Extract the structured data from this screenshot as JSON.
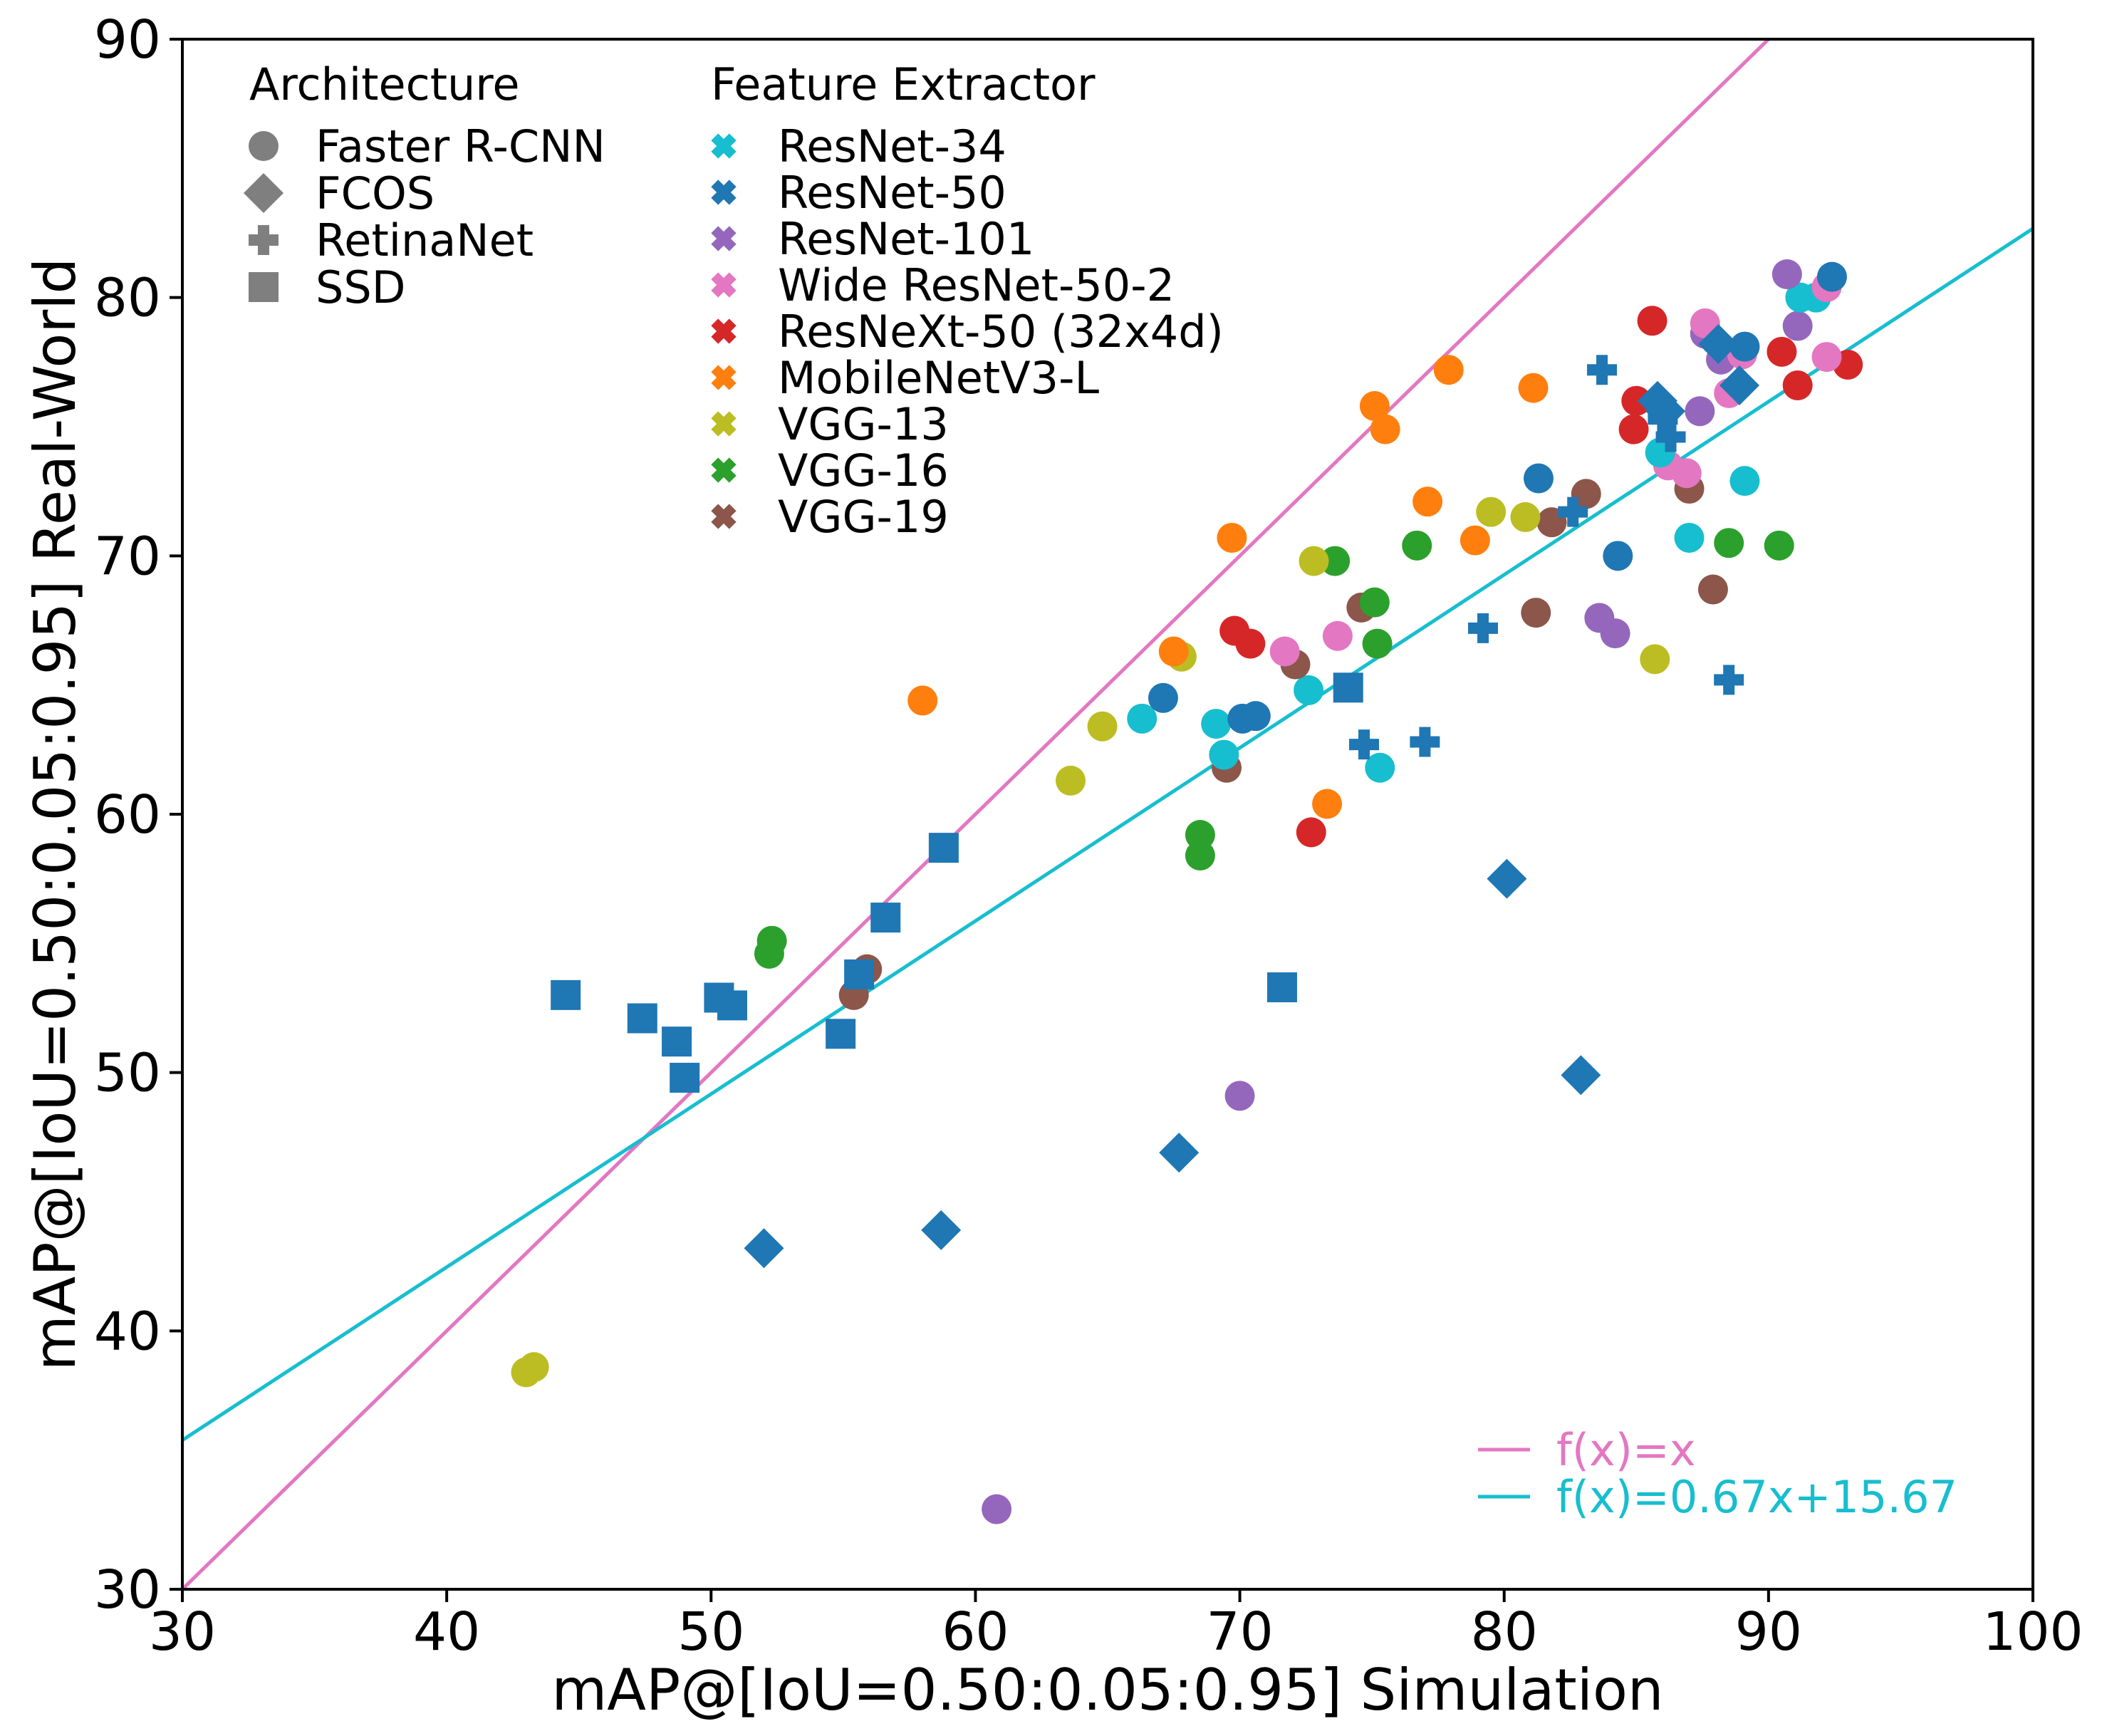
{
  "chart_data": {
    "type": "scatter",
    "title": "",
    "xlabel": "mAP@[IoU=0.50:0.05:0.95] Simulation",
    "ylabel": "mAP@[IoU=0.50:0.05:0.95] Real-World",
    "xlim": [
      30,
      100
    ],
    "ylim": [
      30,
      90
    ],
    "xticks": [
      "30",
      "40",
      "50",
      "60",
      "70",
      "80",
      "90",
      "100"
    ],
    "yticks": [
      "30",
      "40",
      "50",
      "60",
      "70",
      "80",
      "90"
    ],
    "grid": false,
    "legend_architecture": {
      "title": "Architecture",
      "items": [
        {
          "label": "Faster R-CNN",
          "shape": "circle"
        },
        {
          "label": "FCOS",
          "shape": "diamond"
        },
        {
          "label": "RetinaNet",
          "shape": "plus"
        },
        {
          "label": "SSD",
          "shape": "square"
        }
      ]
    },
    "legend_extractor": {
      "title": "Feature Extractor",
      "items": [
        {
          "label": "ResNet-34",
          "key": "r34",
          "color": "#17becf"
        },
        {
          "label": "ResNet-50",
          "key": "r50",
          "color": "#1f77b4"
        },
        {
          "label": "ResNet-101",
          "key": "r101",
          "color": "#9467bd"
        },
        {
          "label": "Wide ResNet-50-2",
          "key": "wr50",
          "color": "#e377c2"
        },
        {
          "label": "ResNeXt-50 (32x4d)",
          "key": "rx50",
          "color": "#d62728"
        },
        {
          "label": "MobileNetV3-L",
          "key": "mnv3",
          "color": "#ff7f0e"
        },
        {
          "label": "VGG-13",
          "key": "vgg13",
          "color": "#bcbd22"
        },
        {
          "label": "VGG-16",
          "key": "vgg16",
          "color": "#2ca02c"
        },
        {
          "label": "VGG-19",
          "key": "vgg19",
          "color": "#8c564b"
        }
      ]
    },
    "lines": [
      {
        "label": "f(x)=x",
        "slope": 1,
        "intercept": 0,
        "color": "#e377c2"
      },
      {
        "label": "f(x)=0.67x+15.67",
        "slope": 0.67,
        "intercept": 15.67,
        "color": "#17becf"
      }
    ],
    "points": [
      {
        "arch": "circle",
        "ext": "r101",
        "x": 60.8,
        "y": 33.1
      },
      {
        "arch": "circle",
        "ext": "vgg13",
        "x": 43.0,
        "y": 38.4
      },
      {
        "arch": "circle",
        "ext": "vgg13",
        "x": 43.3,
        "y": 38.6
      },
      {
        "arch": "circle",
        "ext": "r101",
        "x": 70.0,
        "y": 49.1
      },
      {
        "arch": "circle",
        "ext": "vgg19",
        "x": 55.4,
        "y": 53.0
      },
      {
        "arch": "circle",
        "ext": "vgg19",
        "x": 55.9,
        "y": 54.0
      },
      {
        "arch": "circle",
        "ext": "vgg16",
        "x": 52.2,
        "y": 54.6
      },
      {
        "arch": "circle",
        "ext": "vgg16",
        "x": 52.3,
        "y": 55.1
      },
      {
        "arch": "circle",
        "ext": "vgg16",
        "x": 68.5,
        "y": 58.4
      },
      {
        "arch": "circle",
        "ext": "vgg16",
        "x": 68.5,
        "y": 59.2
      },
      {
        "arch": "circle",
        "ext": "rx50",
        "x": 72.7,
        "y": 59.3
      },
      {
        "arch": "circle",
        "ext": "mnv3",
        "x": 73.3,
        "y": 60.4
      },
      {
        "arch": "circle",
        "ext": "vgg13",
        "x": 63.6,
        "y": 61.3
      },
      {
        "arch": "circle",
        "ext": "vgg19",
        "x": 69.5,
        "y": 61.8
      },
      {
        "arch": "circle",
        "ext": "r34",
        "x": 75.3,
        "y": 61.8
      },
      {
        "arch": "circle",
        "ext": "r34",
        "x": 69.4,
        "y": 62.3
      },
      {
        "arch": "circle",
        "ext": "vgg13",
        "x": 64.8,
        "y": 63.4
      },
      {
        "arch": "circle",
        "ext": "r34",
        "x": 69.1,
        "y": 63.5
      },
      {
        "arch": "circle",
        "ext": "r34",
        "x": 66.3,
        "y": 63.7
      },
      {
        "arch": "circle",
        "ext": "r50",
        "x": 70.1,
        "y": 63.7
      },
      {
        "arch": "circle",
        "ext": "r50",
        "x": 70.6,
        "y": 63.8
      },
      {
        "arch": "circle",
        "ext": "mnv3",
        "x": 58.0,
        "y": 64.4
      },
      {
        "arch": "circle",
        "ext": "r50",
        "x": 67.1,
        "y": 64.5
      },
      {
        "arch": "circle",
        "ext": "r34",
        "x": 72.6,
        "y": 64.8
      },
      {
        "arch": "circle",
        "ext": "vgg19",
        "x": 72.1,
        "y": 65.8
      },
      {
        "arch": "circle",
        "ext": "vgg13",
        "x": 85.7,
        "y": 66.0
      },
      {
        "arch": "circle",
        "ext": "vgg13",
        "x": 67.8,
        "y": 66.1
      },
      {
        "arch": "circle",
        "ext": "mnv3",
        "x": 67.5,
        "y": 66.3
      },
      {
        "arch": "circle",
        "ext": "wr50",
        "x": 71.7,
        "y": 66.3
      },
      {
        "arch": "circle",
        "ext": "rx50",
        "x": 70.4,
        "y": 66.6
      },
      {
        "arch": "circle",
        "ext": "vgg16",
        "x": 75.2,
        "y": 66.6
      },
      {
        "arch": "circle",
        "ext": "wr50",
        "x": 73.7,
        "y": 66.9
      },
      {
        "arch": "circle",
        "ext": "rx50",
        "x": 69.8,
        "y": 67.1
      },
      {
        "arch": "circle",
        "ext": "r101",
        "x": 84.2,
        "y": 67.0
      },
      {
        "arch": "circle",
        "ext": "r101",
        "x": 83.6,
        "y": 67.6
      },
      {
        "arch": "circle",
        "ext": "vgg19",
        "x": 81.2,
        "y": 67.8
      },
      {
        "arch": "circle",
        "ext": "vgg19",
        "x": 74.6,
        "y": 68.0
      },
      {
        "arch": "circle",
        "ext": "vgg16",
        "x": 75.1,
        "y": 68.2
      },
      {
        "arch": "circle",
        "ext": "vgg19",
        "x": 87.9,
        "y": 68.7
      },
      {
        "arch": "circle",
        "ext": "vgg16",
        "x": 73.6,
        "y": 69.8
      },
      {
        "arch": "circle",
        "ext": "vgg13",
        "x": 72.8,
        "y": 69.8
      },
      {
        "arch": "circle",
        "ext": "r50",
        "x": 84.3,
        "y": 70.0
      },
      {
        "arch": "circle",
        "ext": "vgg16",
        "x": 90.4,
        "y": 70.4
      },
      {
        "arch": "circle",
        "ext": "vgg16",
        "x": 76.7,
        "y": 70.4
      },
      {
        "arch": "circle",
        "ext": "vgg16",
        "x": 88.5,
        "y": 70.5
      },
      {
        "arch": "circle",
        "ext": "mnv3",
        "x": 78.9,
        "y": 70.6
      },
      {
        "arch": "circle",
        "ext": "r34",
        "x": 87.0,
        "y": 70.7
      },
      {
        "arch": "circle",
        "ext": "mnv3",
        "x": 69.7,
        "y": 70.7
      },
      {
        "arch": "circle",
        "ext": "vgg19",
        "x": 81.8,
        "y": 71.3
      },
      {
        "arch": "circle",
        "ext": "vgg13",
        "x": 80.8,
        "y": 71.5
      },
      {
        "arch": "circle",
        "ext": "vgg13",
        "x": 79.5,
        "y": 71.7
      },
      {
        "arch": "circle",
        "ext": "mnv3",
        "x": 77.1,
        "y": 72.1
      },
      {
        "arch": "circle",
        "ext": "vgg19",
        "x": 83.1,
        "y": 72.4
      },
      {
        "arch": "circle",
        "ext": "vgg19",
        "x": 87.0,
        "y": 72.6
      },
      {
        "arch": "circle",
        "ext": "r34",
        "x": 89.1,
        "y": 72.9
      },
      {
        "arch": "circle",
        "ext": "r50",
        "x": 81.3,
        "y": 73.0
      },
      {
        "arch": "circle",
        "ext": "wr50",
        "x": 86.9,
        "y": 73.2
      },
      {
        "arch": "circle",
        "ext": "wr50",
        "x": 86.2,
        "y": 73.5
      },
      {
        "arch": "circle",
        "ext": "r34",
        "x": 85.9,
        "y": 74.0
      },
      {
        "arch": "circle",
        "ext": "rx50",
        "x": 84.9,
        "y": 74.9
      },
      {
        "arch": "circle",
        "ext": "mnv3",
        "x": 75.5,
        "y": 74.9
      },
      {
        "arch": "circle",
        "ext": "r101",
        "x": 87.4,
        "y": 75.6
      },
      {
        "arch": "circle",
        "ext": "mnv3",
        "x": 75.1,
        "y": 75.8
      },
      {
        "arch": "circle",
        "ext": "rx50",
        "x": 85.0,
        "y": 76.0
      },
      {
        "arch": "circle",
        "ext": "mnv3",
        "x": 81.1,
        "y": 76.5
      },
      {
        "arch": "circle",
        "ext": "rx50",
        "x": 91.1,
        "y": 76.6
      },
      {
        "arch": "circle",
        "ext": "mnv3",
        "x": 77.9,
        "y": 77.2
      },
      {
        "arch": "circle",
        "ext": "rx50",
        "x": 93.0,
        "y": 77.4
      },
      {
        "arch": "circle",
        "ext": "wr50",
        "x": 88.5,
        "y": 76.3
      },
      {
        "arch": "circle",
        "ext": "r101",
        "x": 88.2,
        "y": 77.6
      },
      {
        "arch": "circle",
        "ext": "wr50",
        "x": 92.2,
        "y": 77.7
      },
      {
        "arch": "circle",
        "ext": "wr50",
        "x": 89.0,
        "y": 77.8
      },
      {
        "arch": "circle",
        "ext": "rx50",
        "x": 90.5,
        "y": 77.9
      },
      {
        "arch": "circle",
        "ext": "r50",
        "x": 89.1,
        "y": 78.1
      },
      {
        "arch": "circle",
        "ext": "r101",
        "x": 87.6,
        "y": 78.6
      },
      {
        "arch": "circle",
        "ext": "r101",
        "x": 91.1,
        "y": 78.9
      },
      {
        "arch": "circle",
        "ext": "wr50",
        "x": 87.6,
        "y": 79.0
      },
      {
        "arch": "circle",
        "ext": "rx50",
        "x": 85.6,
        "y": 79.1
      },
      {
        "arch": "circle",
        "ext": "r34",
        "x": 91.2,
        "y": 80.0
      },
      {
        "arch": "circle",
        "ext": "r34",
        "x": 91.8,
        "y": 80.0
      },
      {
        "arch": "circle",
        "ext": "wr50",
        "x": 92.2,
        "y": 80.4
      },
      {
        "arch": "circle",
        "ext": "r50",
        "x": 92.4,
        "y": 80.8
      },
      {
        "arch": "circle",
        "ext": "r101",
        "x": 90.7,
        "y": 80.9
      },
      {
        "arch": "diamond",
        "ext": "r50",
        "x": 52.0,
        "y": 43.2
      },
      {
        "arch": "diamond",
        "ext": "r50",
        "x": 58.7,
        "y": 43.9
      },
      {
        "arch": "diamond",
        "ext": "r50",
        "x": 67.7,
        "y": 46.9
      },
      {
        "arch": "diamond",
        "ext": "r50",
        "x": 82.9,
        "y": 49.9
      },
      {
        "arch": "diamond",
        "ext": "r50",
        "x": 80.1,
        "y": 57.5
      },
      {
        "arch": "diamond",
        "ext": "r50",
        "x": 85.8,
        "y": 76.0
      },
      {
        "arch": "diamond",
        "ext": "r50",
        "x": 86.1,
        "y": 75.6
      },
      {
        "arch": "diamond",
        "ext": "r50",
        "x": 88.9,
        "y": 76.6
      },
      {
        "arch": "diamond",
        "ext": "r50",
        "x": 88.1,
        "y": 78.2
      },
      {
        "arch": "plus",
        "ext": "r50",
        "x": 74.7,
        "y": 62.7
      },
      {
        "arch": "plus",
        "ext": "r50",
        "x": 77.0,
        "y": 62.8
      },
      {
        "arch": "plus",
        "ext": "r50",
        "x": 88.5,
        "y": 65.2
      },
      {
        "arch": "plus",
        "ext": "r50",
        "x": 79.2,
        "y": 67.2
      },
      {
        "arch": "plus",
        "ext": "r50",
        "x": 82.6,
        "y": 71.7
      },
      {
        "arch": "plus",
        "ext": "r50",
        "x": 86.3,
        "y": 74.6
      },
      {
        "arch": "plus",
        "ext": "r50",
        "x": 86.0,
        "y": 75.3
      },
      {
        "arch": "plus",
        "ext": "r50",
        "x": 83.7,
        "y": 77.2
      },
      {
        "arch": "square",
        "ext": "r50",
        "x": 44.5,
        "y": 53.0
      },
      {
        "arch": "square",
        "ext": "r50",
        "x": 47.4,
        "y": 52.1
      },
      {
        "arch": "square",
        "ext": "r50",
        "x": 48.7,
        "y": 51.2
      },
      {
        "arch": "square",
        "ext": "r50",
        "x": 49.0,
        "y": 49.8
      },
      {
        "arch": "square",
        "ext": "r50",
        "x": 50.3,
        "y": 52.9
      },
      {
        "arch": "square",
        "ext": "r50",
        "x": 50.8,
        "y": 52.6
      },
      {
        "arch": "square",
        "ext": "r50",
        "x": 54.9,
        "y": 51.5
      },
      {
        "arch": "square",
        "ext": "r50",
        "x": 55.6,
        "y": 53.8
      },
      {
        "arch": "square",
        "ext": "r50",
        "x": 56.6,
        "y": 56.0
      },
      {
        "arch": "square",
        "ext": "r50",
        "x": 58.8,
        "y": 58.7
      },
      {
        "arch": "square",
        "ext": "r50",
        "x": 71.6,
        "y": 53.3
      },
      {
        "arch": "square",
        "ext": "r50",
        "x": 74.1,
        "y": 64.9
      }
    ]
  }
}
